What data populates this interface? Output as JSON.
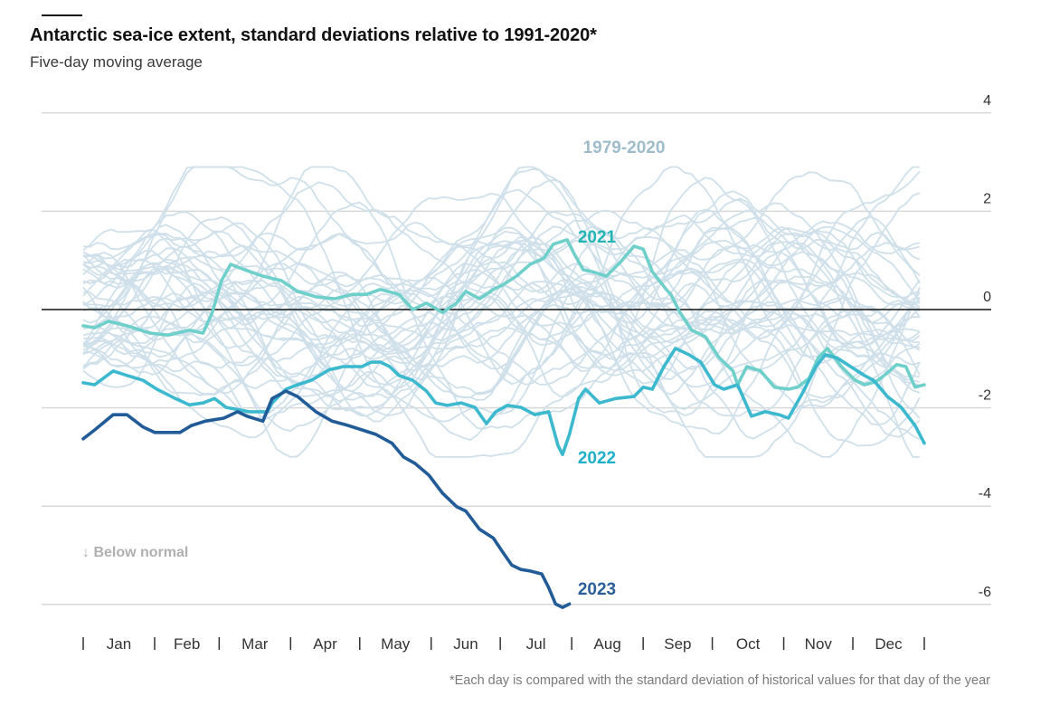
{
  "header": {
    "title": "Antarctic sea-ice extent, standard deviations relative to 1991-2020*",
    "subtitle": "Five-day moving average"
  },
  "footnote": "*Each day is compared with the standard deviation of historical values for that day of the year",
  "annotation": {
    "below_normal": "↓ Below normal",
    "icon": "arrow-down-icon"
  },
  "colors": {
    "historical": "#cfe0ea",
    "historical_label": "#9fbccb",
    "y2021": "#6fd0cb",
    "y2021_label": "#22b5b3",
    "y2022": "#3cb8cf",
    "y2022_label": "#1fb0c8",
    "y2023": "#225c98",
    "y2023_label": "#2c5f9a",
    "zero_line": "#121212",
    "grid": "#d8d8d8"
  },
  "chart_data": {
    "type": "line",
    "title": "Antarctic sea-ice extent, standard deviations relative to 1991-2020*",
    "subtitle": "Five-day moving average",
    "xlabel": "",
    "ylabel": "",
    "x_unit": "day of year",
    "xlim": [
      0,
      365
    ],
    "ylim": [
      -6.2,
      4
    ],
    "y_ticks": [
      4,
      2,
      0,
      -2,
      -4,
      -6
    ],
    "y_tick_labels": [
      "4",
      "2",
      "0",
      "-2",
      "-4",
      "-6"
    ],
    "x_tick_labels": [
      "Jan",
      "Feb",
      "Mar",
      "Apr",
      "May",
      "Jun",
      "Jul",
      "Aug",
      "Sep",
      "Oct",
      "Nov",
      "Dec"
    ],
    "x_month_starts": [
      0,
      31,
      59,
      90,
      120,
      151,
      181,
      212,
      243,
      273,
      304,
      334,
      365
    ],
    "grid": true,
    "zero_line": true,
    "legend": "inline labels",
    "annotations": [
      "1979-2020",
      "2021",
      "2022",
      "2023",
      "↓ Below normal"
    ],
    "series": [
      {
        "name": "2023",
        "label": "2023",
        "points": [
          [
            0,
            -2.63
          ],
          [
            5,
            -2.45
          ],
          [
            13,
            -2.14
          ],
          [
            19,
            -2.14
          ],
          [
            26,
            -2.39
          ],
          [
            31,
            -2.5
          ],
          [
            42,
            -2.5
          ],
          [
            47,
            -2.36
          ],
          [
            53,
            -2.27
          ],
          [
            61,
            -2.21
          ],
          [
            67,
            -2.08
          ],
          [
            71,
            -2.17
          ],
          [
            78,
            -2.27
          ],
          [
            82,
            -1.81
          ],
          [
            88,
            -1.66
          ],
          [
            93,
            -1.77
          ],
          [
            101,
            -2.08
          ],
          [
            108,
            -2.27
          ],
          [
            115,
            -2.36
          ],
          [
            127,
            -2.54
          ],
          [
            134,
            -2.72
          ],
          [
            139,
            -3.0
          ],
          [
            144,
            -3.13
          ],
          [
            150,
            -3.37
          ],
          [
            156,
            -3.74
          ],
          [
            162,
            -4.01
          ],
          [
            166,
            -4.1
          ],
          [
            172,
            -4.47
          ],
          [
            178,
            -4.65
          ],
          [
            182,
            -4.93
          ],
          [
            186,
            -5.2
          ],
          [
            190,
            -5.29
          ],
          [
            194,
            -5.32
          ],
          [
            199,
            -5.38
          ],
          [
            202,
            -5.66
          ],
          [
            205,
            -5.99
          ],
          [
            208,
            -6.06
          ],
          [
            211,
            -5.99
          ]
        ]
      },
      {
        "name": "2022",
        "label": "2022",
        "points": [
          [
            0,
            -1.49
          ],
          [
            5,
            -1.53
          ],
          [
            13,
            -1.25
          ],
          [
            19,
            -1.34
          ],
          [
            26,
            -1.44
          ],
          [
            32,
            -1.62
          ],
          [
            40,
            -1.81
          ],
          [
            46,
            -1.94
          ],
          [
            52,
            -1.9
          ],
          [
            57,
            -1.81
          ],
          [
            62,
            -1.99
          ],
          [
            72,
            -2.08
          ],
          [
            80,
            -2.08
          ],
          [
            82,
            -1.9
          ],
          [
            88,
            -1.62
          ],
          [
            93,
            -1.53
          ],
          [
            99,
            -1.44
          ],
          [
            107,
            -1.22
          ],
          [
            113,
            -1.16
          ],
          [
            121,
            -1.16
          ],
          [
            125,
            -1.07
          ],
          [
            129,
            -1.07
          ],
          [
            133,
            -1.16
          ],
          [
            137,
            -1.34
          ],
          [
            143,
            -1.44
          ],
          [
            149,
            -1.66
          ],
          [
            153,
            -1.9
          ],
          [
            158,
            -1.95
          ],
          [
            164,
            -1.9
          ],
          [
            170,
            -1.99
          ],
          [
            175,
            -2.32
          ],
          [
            179,
            -2.08
          ],
          [
            184,
            -1.95
          ],
          [
            190,
            -1.99
          ],
          [
            196,
            -2.14
          ],
          [
            202,
            -2.08
          ],
          [
            206,
            -2.76
          ],
          [
            208,
            -2.95
          ],
          [
            211,
            -2.54
          ],
          [
            215,
            -1.81
          ],
          [
            218,
            -1.62
          ],
          [
            224,
            -1.9
          ],
          [
            231,
            -1.81
          ],
          [
            239,
            -1.77
          ],
          [
            243,
            -1.58
          ],
          [
            247,
            -1.62
          ],
          [
            252,
            -1.16
          ],
          [
            257,
            -0.79
          ],
          [
            263,
            -0.92
          ],
          [
            268,
            -1.07
          ],
          [
            274,
            -1.53
          ],
          [
            278,
            -1.62
          ],
          [
            284,
            -1.53
          ],
          [
            290,
            -2.17
          ],
          [
            296,
            -2.08
          ],
          [
            302,
            -2.14
          ],
          [
            306,
            -2.21
          ],
          [
            312,
            -1.71
          ],
          [
            318,
            -1.16
          ],
          [
            322,
            -0.92
          ],
          [
            327,
            -0.98
          ],
          [
            333,
            -1.16
          ],
          [
            339,
            -1.34
          ],
          [
            343,
            -1.44
          ],
          [
            349,
            -1.77
          ],
          [
            355,
            -1.99
          ],
          [
            361,
            -2.36
          ],
          [
            365,
            -2.72
          ]
        ]
      },
      {
        "name": "2021",
        "label": "2021",
        "points": [
          [
            0,
            -0.33
          ],
          [
            5,
            -0.37
          ],
          [
            11,
            -0.24
          ],
          [
            19,
            -0.33
          ],
          [
            29,
            -0.48
          ],
          [
            37,
            -0.52
          ],
          [
            46,
            -0.42
          ],
          [
            52,
            -0.48
          ],
          [
            56,
            -0.06
          ],
          [
            60,
            0.59
          ],
          [
            64,
            0.92
          ],
          [
            70,
            0.81
          ],
          [
            78,
            0.68
          ],
          [
            86,
            0.59
          ],
          [
            93,
            0.37
          ],
          [
            101,
            0.26
          ],
          [
            109,
            0.22
          ],
          [
            117,
            0.31
          ],
          [
            123,
            0.31
          ],
          [
            129,
            0.41
          ],
          [
            137,
            0.31
          ],
          [
            143,
            0.0
          ],
          [
            149,
            0.13
          ],
          [
            156,
            -0.06
          ],
          [
            162,
            0.13
          ],
          [
            166,
            0.37
          ],
          [
            172,
            0.22
          ],
          [
            178,
            0.41
          ],
          [
            182,
            0.5
          ],
          [
            188,
            0.68
          ],
          [
            194,
            0.92
          ],
          [
            200,
            1.05
          ],
          [
            204,
            1.33
          ],
          [
            210,
            1.42
          ],
          [
            213,
            1.14
          ],
          [
            217,
            0.81
          ],
          [
            221,
            0.77
          ],
          [
            227,
            0.68
          ],
          [
            233,
            0.96
          ],
          [
            239,
            1.29
          ],
          [
            243,
            1.23
          ],
          [
            247,
            0.77
          ],
          [
            253,
            0.41
          ],
          [
            255,
            0.31
          ],
          [
            259,
            -0.06
          ],
          [
            264,
            -0.42
          ],
          [
            270,
            -0.55
          ],
          [
            276,
            -0.98
          ],
          [
            282,
            -1.25
          ],
          [
            284,
            -1.53
          ],
          [
            288,
            -1.16
          ],
          [
            294,
            -1.25
          ],
          [
            300,
            -1.58
          ],
          [
            306,
            -1.62
          ],
          [
            310,
            -1.58
          ],
          [
            315,
            -1.4
          ],
          [
            319,
            -0.98
          ],
          [
            323,
            -0.79
          ],
          [
            329,
            -1.16
          ],
          [
            335,
            -1.44
          ],
          [
            339,
            -1.53
          ],
          [
            344,
            -1.47
          ],
          [
            349,
            -1.29
          ],
          [
            353,
            -1.12
          ],
          [
            357,
            -1.16
          ],
          [
            361,
            -1.58
          ],
          [
            365,
            -1.53
          ]
        ]
      },
      {
        "name": "1979-2020",
        "label": "1979-2020",
        "description": "42 individual years, values approximately within -3 to +3 standard deviations; rendered as generated approximations",
        "count": 42,
        "range": [
          -3.0,
          2.9
        ]
      }
    ],
    "labels": {
      "historical": "1979-2020",
      "y2021": "2021",
      "y2022": "2022",
      "y2023": "2023"
    }
  }
}
